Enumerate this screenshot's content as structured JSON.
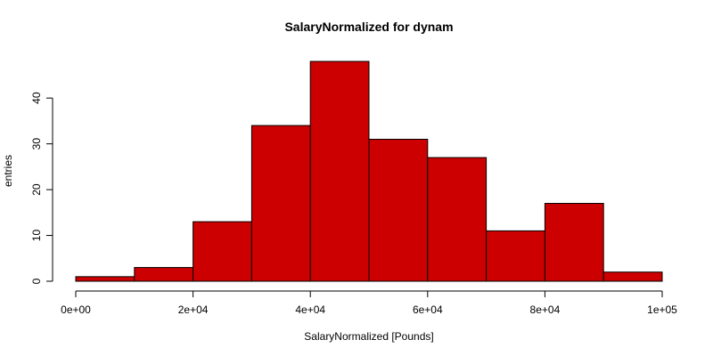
{
  "chart_data": {
    "type": "bar",
    "title": "SalaryNormalized for dynam",
    "xlabel": "SalaryNormalized [Pounds]",
    "ylabel": "entries",
    "bin_edges": [
      0,
      10000,
      20000,
      30000,
      40000,
      50000,
      60000,
      70000,
      80000,
      90000,
      100000
    ],
    "values": [
      1,
      3,
      13,
      34,
      48,
      31,
      27,
      11,
      17,
      2
    ],
    "xlim": [
      0,
      100000
    ],
    "ylim": [
      0,
      48
    ],
    "x_ticks": [
      0,
      20000,
      40000,
      60000,
      80000,
      100000
    ],
    "x_tick_labels": [
      "0e+00",
      "2e+04",
      "4e+04",
      "6e+04",
      "8e+04",
      "1e+05"
    ],
    "y_ticks": [
      0,
      10,
      20,
      30,
      40
    ],
    "y_tick_labels": [
      "0",
      "10",
      "20",
      "30",
      "40"
    ],
    "grid": false,
    "legend": "none",
    "bar_color": "#CC0000",
    "edge_color": "#000000"
  }
}
